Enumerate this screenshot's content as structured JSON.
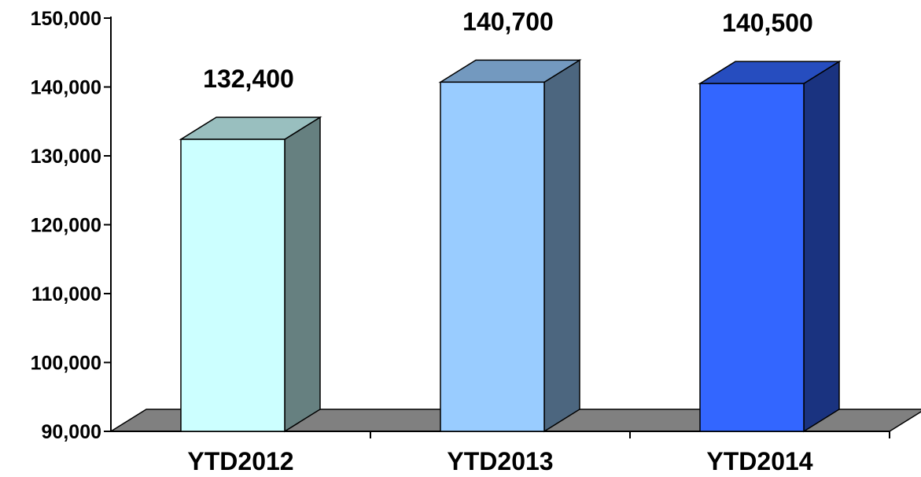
{
  "chart_data": {
    "type": "bar",
    "style": "3d-column",
    "categories": [
      "YTD2012",
      "YTD2013",
      "YTD2014"
    ],
    "values": [
      132400,
      140700,
      140500
    ],
    "data_labels": [
      "132,400",
      "140,700",
      "140,500"
    ],
    "title": "",
    "xlabel": "",
    "ylabel": "",
    "ylim": [
      90000,
      150000
    ],
    "yticks": [
      90000,
      100000,
      110000,
      120000,
      130000,
      140000,
      150000
    ],
    "ytick_labels": [
      "90,000",
      "100,000",
      "110,000",
      "120,000",
      "130,000",
      "140,000",
      "150,000"
    ],
    "grid": false,
    "legend": "none",
    "colors": {
      "bars": [
        {
          "front": "#ccffff",
          "side": "#668080",
          "top": "#99bfbf"
        },
        {
          "front": "#99ccff",
          "side": "#4c667f",
          "top": "#7399bf"
        },
        {
          "front": "#3366ff",
          "side": "#1a3380",
          "top": "#264dbf"
        }
      ],
      "floor": "#808080"
    }
  }
}
